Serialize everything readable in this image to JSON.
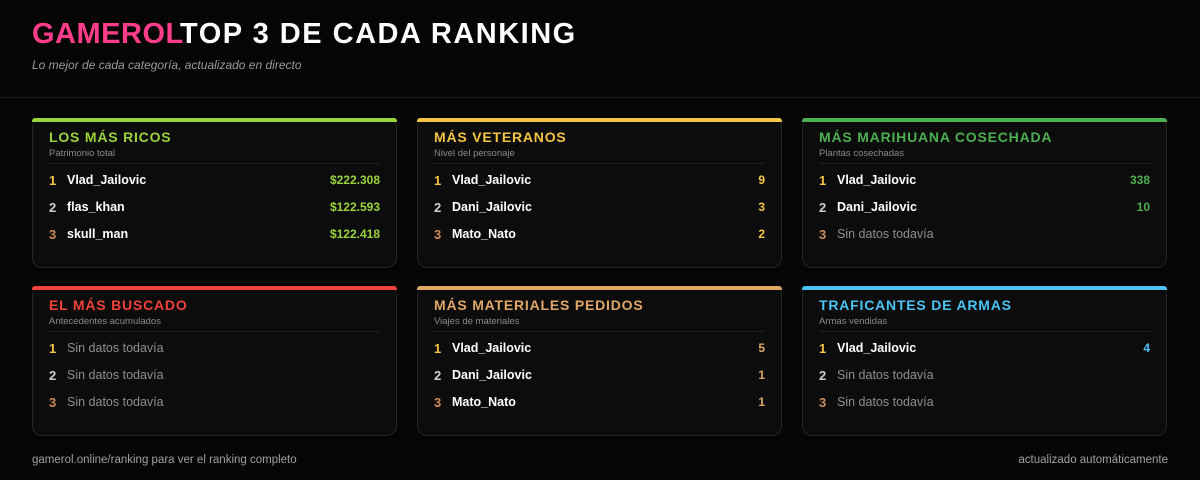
{
  "header": {
    "brand": "GAMEROL",
    "title": "TOP 3 DE CADA RANKING",
    "subtitle": "Lo mejor de cada categoría, actualizado en directo"
  },
  "rank_colors": [
    "#f5c542",
    "#cfcfcf",
    "#d08a5c"
  ],
  "cards": [
    {
      "title": "LOS MÁS RICOS",
      "subtitle": "Patrimonio total",
      "color": "#9ad43a",
      "rows": [
        {
          "rank": "1",
          "name": "Vlad_Jailovic",
          "value": "$222.308"
        },
        {
          "rank": "2",
          "name": "flas_khan",
          "value": "$122.593"
        },
        {
          "rank": "3",
          "name": "skull_man",
          "value": "$122.418"
        }
      ]
    },
    {
      "title": "MÁS VETERANOS",
      "subtitle": "Nivel del personaje",
      "color": "#f5c542",
      "rows": [
        {
          "rank": "1",
          "name": "Vlad_Jailovic",
          "value": "9"
        },
        {
          "rank": "2",
          "name": "Dani_Jailovic",
          "value": "3"
        },
        {
          "rank": "3",
          "name": "Mato_Nato",
          "value": "2"
        }
      ]
    },
    {
      "title": "MÁS MARIHUANA COSECHADA",
      "subtitle": "Plantas cosechadas",
      "color": "#4caf50",
      "rows": [
        {
          "rank": "1",
          "name": "Vlad_Jailovic",
          "value": "338"
        },
        {
          "rank": "2",
          "name": "Dani_Jailovic",
          "value": "10"
        },
        {
          "rank": "3",
          "empty": "Sin datos todavía"
        }
      ]
    },
    {
      "title": "EL MÁS BUSCADO",
      "subtitle": "Antecedentes acumulados",
      "color": "#f0413a",
      "rows": [
        {
          "rank": "1",
          "empty": "Sin datos todavía"
        },
        {
          "rank": "2",
          "empty": "Sin datos todavía"
        },
        {
          "rank": "3",
          "empty": "Sin datos todavía"
        }
      ]
    },
    {
      "title": "MÁS MATERIALES PEDIDOS",
      "subtitle": "Viajes de materiales",
      "color": "#e0a766",
      "rows": [
        {
          "rank": "1",
          "name": "Vlad_Jailovic",
          "value": "5"
        },
        {
          "rank": "2",
          "name": "Dani_Jailovic",
          "value": "1"
        },
        {
          "rank": "3",
          "name": "Mato_Nato",
          "value": "1"
        }
      ]
    },
    {
      "title": "TRAFICANTES DE ARMAS",
      "subtitle": "Armas vendidas",
      "color": "#4cc3f5",
      "rows": [
        {
          "rank": "1",
          "name": "Vlad_Jailovic",
          "value": "4"
        },
        {
          "rank": "2",
          "empty": "Sin datos todavía"
        },
        {
          "rank": "3",
          "empty": "Sin datos todavía"
        }
      ]
    }
  ],
  "footer": {
    "left": "gamerol.online/ranking para ver el ranking completo",
    "right": "actualizado automáticamente"
  }
}
